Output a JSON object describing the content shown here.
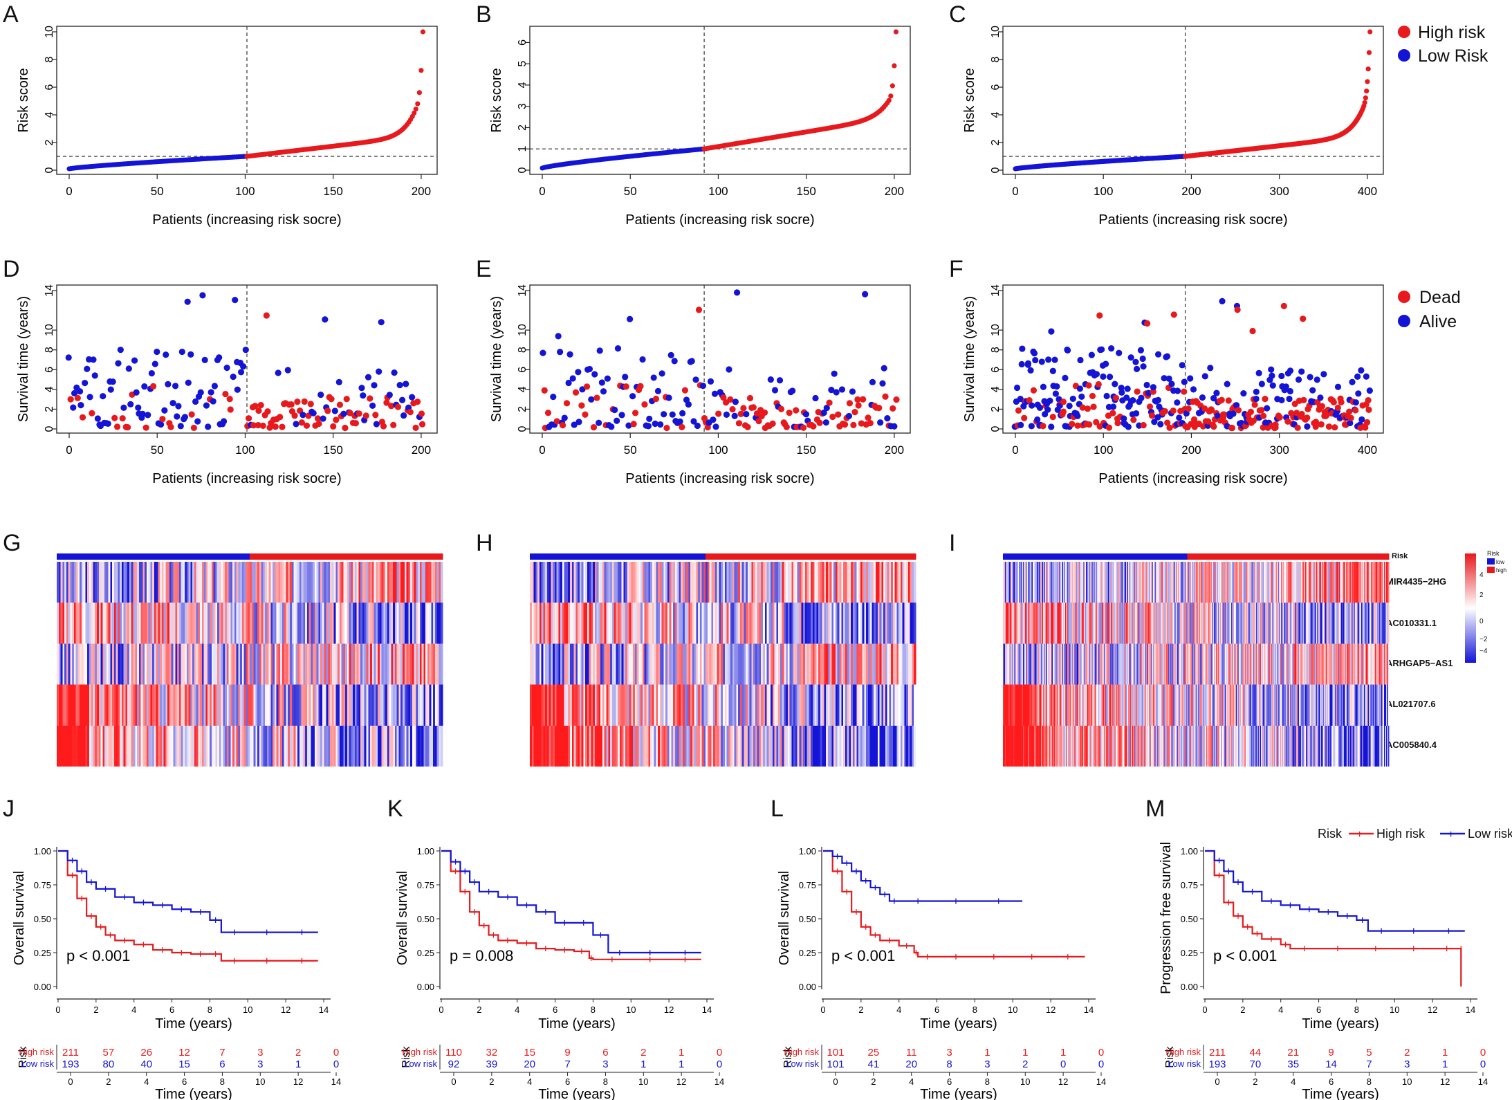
{
  "colors": {
    "high": "#e8191c",
    "low": "#1414d6",
    "dead": "#e8191c",
    "alive": "#1414d6"
  },
  "panel_letters": [
    "A",
    "B",
    "C",
    "D",
    "E",
    "F",
    "G",
    "H",
    "I",
    "J",
    "K",
    "L",
    "M"
  ],
  "risk_legend": {
    "high": "High risk",
    "low": "Low Risk"
  },
  "survival_legend": {
    "dead": "Dead",
    "alive": "Alive"
  },
  "heatmap_legend": {
    "title": "Risk",
    "low": "low",
    "high": "high",
    "ticks": [
      "4",
      "2",
      "0",
      "−2",
      "−4"
    ],
    "genes": [
      "Risk",
      "MIR4435−2HG",
      "AC010331.1",
      "ARHGAP5−AS1",
      "AL021707.6",
      "AC005840.4"
    ]
  },
  "km_legend": {
    "title": "Risk",
    "high": "High risk",
    "low": "Low risk"
  },
  "chart_data": [
    {
      "id": "A",
      "type": "scatter",
      "xlabel": "Patients (increasing risk socre)",
      "ylabel": "Risk score",
      "n": 202,
      "cutoff_index": 101,
      "cutoff_value": 1,
      "ylim": [
        0,
        10
      ],
      "yticks": [
        "0",
        "2",
        "4",
        "6",
        "8",
        "10"
      ],
      "xticks": [
        "0",
        "50",
        "100",
        "150",
        "200"
      ],
      "max_score": 10,
      "series": [
        {
          "name": "Low Risk"
        },
        {
          "name": "High risk"
        }
      ]
    },
    {
      "id": "B",
      "type": "scatter",
      "xlabel": "Patients (increasing risk socre)",
      "ylabel": "Risk score",
      "n": 202,
      "cutoff_index": 92,
      "cutoff_value": 1,
      "ylim": [
        0,
        6.5
      ],
      "yticks": [
        "0",
        "1",
        "2",
        "3",
        "4",
        "5",
        "6"
      ],
      "xticks": [
        "0",
        "50",
        "100",
        "150",
        "200"
      ],
      "max_score": 6.5,
      "series": [
        {
          "name": "Low Risk"
        },
        {
          "name": "High risk"
        }
      ]
    },
    {
      "id": "C",
      "type": "scatter",
      "xlabel": "Patients (increasing risk socre)",
      "ylabel": "Risk score",
      "n": 404,
      "cutoff_index": 193,
      "cutoff_value": 1,
      "ylim": [
        0,
        10
      ],
      "yticks": [
        "0",
        "2",
        "4",
        "6",
        "8",
        "10"
      ],
      "xticks": [
        "0",
        "100",
        "200",
        "300",
        "400"
      ],
      "max_score": 10,
      "series": [
        {
          "name": "Low Risk"
        },
        {
          "name": "High risk"
        }
      ]
    },
    {
      "id": "D",
      "type": "scatter",
      "xlabel": "Patients (increasing risk socre)",
      "ylabel": "Survival time (years)",
      "n": 202,
      "cutoff_index": 101,
      "ylim": [
        0,
        14
      ],
      "yticks": [
        "0",
        "2",
        "4",
        "6",
        "8",
        "10",
        "14"
      ],
      "xticks": [
        "0",
        "50",
        "100",
        "150",
        "200"
      ],
      "series": [
        {
          "name": "Dead"
        },
        {
          "name": "Alive"
        }
      ]
    },
    {
      "id": "E",
      "type": "scatter",
      "xlabel": "Patients (increasing risk socre)",
      "ylabel": "Survival time (years)",
      "n": 202,
      "cutoff_index": 92,
      "ylim": [
        0,
        14
      ],
      "yticks": [
        "0",
        "2",
        "4",
        "6",
        "8",
        "10",
        "14"
      ],
      "xticks": [
        "0",
        "50",
        "100",
        "150",
        "200"
      ],
      "series": [
        {
          "name": "Dead"
        },
        {
          "name": "Alive"
        }
      ]
    },
    {
      "id": "F",
      "type": "scatter",
      "xlabel": "Patients (increasing risk socre)",
      "ylabel": "Survival time (years)",
      "n": 404,
      "cutoff_index": 193,
      "ylim": [
        0,
        14
      ],
      "yticks": [
        "0",
        "2",
        "4",
        "6",
        "8",
        "10",
        "14"
      ],
      "xticks": [
        "0",
        "100",
        "200",
        "300",
        "400"
      ],
      "series": [
        {
          "name": "Dead"
        },
        {
          "name": "Alive"
        }
      ]
    },
    {
      "id": "G",
      "type": "heatmap",
      "columns": 202,
      "low_columns": 101,
      "rows": [
        "MIR4435−2HG",
        "AC010331.1",
        "ARHGAP5−AS1",
        "AL021707.6",
        "AC005840.4"
      ],
      "scale": [
        -4,
        4
      ]
    },
    {
      "id": "H",
      "type": "heatmap",
      "columns": 202,
      "low_columns": 92,
      "rows": [
        "MIR4435−2HG",
        "AC010331.1",
        "ARHGAP5−AS1",
        "AL021707.6",
        "AC005840.4"
      ],
      "scale": [
        -4,
        4
      ]
    },
    {
      "id": "I",
      "type": "heatmap",
      "columns": 404,
      "low_columns": 193,
      "rows": [
        "MIR4435−2HG",
        "AC010331.1",
        "ARHGAP5−AS1",
        "AL021707.6",
        "AC005840.4"
      ],
      "scale": [
        -4,
        4
      ]
    },
    {
      "id": "J",
      "type": "line",
      "ylabel": "Overall survival",
      "xlabel": "Time (years)",
      "pvalue": "p < 0.001",
      "xlim": [
        0,
        14
      ],
      "ylim": [
        0,
        1
      ],
      "xticks": [
        "0",
        "2",
        "4",
        "6",
        "8",
        "10",
        "12",
        "14"
      ],
      "yticks": [
        "0.00",
        "0.25",
        "0.50",
        "0.75",
        "1.00"
      ],
      "series": [
        {
          "name": "High risk",
          "x": [
            0,
            0.5,
            1,
            1.5,
            2,
            2.5,
            3,
            4,
            5,
            6,
            7,
            8,
            8.6,
            10,
            12,
            13.7
          ],
          "y": [
            1,
            0.82,
            0.65,
            0.52,
            0.44,
            0.38,
            0.34,
            0.31,
            0.27,
            0.25,
            0.24,
            0.24,
            0.19,
            0.19,
            0.19,
            0.19
          ]
        },
        {
          "name": "Low risk",
          "x": [
            0,
            0.5,
            1,
            1.5,
            2,
            3,
            4,
            5,
            6,
            7,
            8,
            8.6,
            10,
            12,
            13.7
          ],
          "y": [
            1,
            0.93,
            0.85,
            0.77,
            0.72,
            0.66,
            0.62,
            0.6,
            0.57,
            0.55,
            0.49,
            0.4,
            0.4,
            0.4,
            0.4
          ]
        }
      ],
      "risk_table": {
        "label": "Risk",
        "rows": [
          {
            "name": "High risk",
            "values": [
              "211",
              "57",
              "26",
              "12",
              "7",
              "3",
              "2",
              "0"
            ]
          },
          {
            "name": "Low risk",
            "values": [
              "193",
              "80",
              "40",
              "15",
              "6",
              "3",
              "1",
              "0"
            ]
          }
        ],
        "xticks": [
          "0",
          "2",
          "4",
          "6",
          "8",
          "10",
          "12",
          "14"
        ],
        "xlabel": "Time (years)"
      }
    },
    {
      "id": "K",
      "type": "line",
      "ylabel": "Overall survival",
      "xlabel": "Time (years)",
      "pvalue": "p = 0.008",
      "xlim": [
        0,
        14
      ],
      "ylim": [
        0,
        1
      ],
      "xticks": [
        "0",
        "2",
        "4",
        "6",
        "8",
        "10",
        "12",
        "14"
      ],
      "yticks": [
        "0.00",
        "0.25",
        "0.50",
        "0.75",
        "1.00"
      ],
      "series": [
        {
          "name": "High risk",
          "x": [
            0,
            0.5,
            1,
            1.5,
            2,
            2.5,
            3,
            4,
            5,
            6,
            7,
            7.8,
            8,
            10,
            12,
            13.7
          ],
          "y": [
            1,
            0.85,
            0.7,
            0.55,
            0.45,
            0.38,
            0.34,
            0.32,
            0.28,
            0.27,
            0.26,
            0.21,
            0.2,
            0.2,
            0.2,
            0.2
          ]
        },
        {
          "name": "Low risk",
          "x": [
            0,
            0.5,
            1,
            1.5,
            2,
            3,
            4,
            5,
            6,
            7,
            8,
            8.8,
            10,
            12,
            13.7
          ],
          "y": [
            1,
            0.92,
            0.85,
            0.77,
            0.7,
            0.66,
            0.6,
            0.55,
            0.47,
            0.47,
            0.38,
            0.25,
            0.25,
            0.25,
            0.25
          ]
        }
      ],
      "risk_table": {
        "label": "Risk",
        "rows": [
          {
            "name": "High risk",
            "values": [
              "110",
              "32",
              "15",
              "9",
              "6",
              "2",
              "1",
              "0"
            ]
          },
          {
            "name": "Low risk",
            "values": [
              "92",
              "39",
              "20",
              "7",
              "3",
              "1",
              "1",
              "0"
            ]
          }
        ],
        "xticks": [
          "0",
          "2",
          "4",
          "6",
          "8",
          "10",
          "12",
          "14"
        ],
        "xlabel": "Time (years)"
      }
    },
    {
      "id": "L",
      "type": "line",
      "ylabel": "Overall survival",
      "xlabel": "Time (years)",
      "pvalue": "p < 0.001",
      "xlim": [
        0,
        14
      ],
      "ylim": [
        0,
        1
      ],
      "xticks": [
        "0",
        "2",
        "4",
        "6",
        "8",
        "10",
        "12",
        "14"
      ],
      "yticks": [
        "0.00",
        "0.25",
        "0.50",
        "0.75",
        "1.00"
      ],
      "series": [
        {
          "name": "High risk",
          "x": [
            0,
            0.5,
            1,
            1.5,
            2,
            2.5,
            3,
            4,
            4.8,
            5,
            6,
            8,
            10,
            12,
            13.8
          ],
          "y": [
            1,
            0.85,
            0.7,
            0.55,
            0.44,
            0.38,
            0.34,
            0.3,
            0.25,
            0.22,
            0.22,
            0.22,
            0.22,
            0.22,
            0.22
          ]
        },
        {
          "name": "Low risk",
          "x": [
            0,
            0.5,
            1,
            1.5,
            2,
            2.5,
            3,
            3.5,
            4,
            6,
            8,
            10.5
          ],
          "y": [
            1,
            0.96,
            0.91,
            0.85,
            0.78,
            0.73,
            0.68,
            0.63,
            0.63,
            0.63,
            0.63,
            0.63
          ]
        }
      ],
      "risk_table": {
        "label": "Risk",
        "rows": [
          {
            "name": "High risk",
            "values": [
              "101",
              "25",
              "11",
              "3",
              "1",
              "1",
              "1",
              "0"
            ]
          },
          {
            "name": "Low risk",
            "values": [
              "101",
              "41",
              "20",
              "8",
              "3",
              "2",
              "0",
              "0"
            ]
          }
        ],
        "xticks": [
          "0",
          "2",
          "4",
          "6",
          "8",
          "10",
          "12",
          "14"
        ],
        "xlabel": "Time (years)"
      }
    },
    {
      "id": "M",
      "type": "line",
      "ylabel": "Progression free survival",
      "xlabel": "Time (years)",
      "pvalue": "p < 0.001",
      "xlim": [
        0,
        14
      ],
      "ylim": [
        0,
        1
      ],
      "xticks": [
        "0",
        "2",
        "4",
        "6",
        "8",
        "10",
        "12",
        "14"
      ],
      "yticks": [
        "0.00",
        "0.25",
        "0.50",
        "0.75",
        "1.00"
      ],
      "series": [
        {
          "name": "High risk",
          "x": [
            0,
            0.5,
            1,
            1.5,
            2,
            2.5,
            3,
            4,
            4.5,
            6,
            8,
            10,
            12,
            13.5,
            13.5
          ],
          "y": [
            1,
            0.82,
            0.62,
            0.52,
            0.44,
            0.39,
            0.35,
            0.31,
            0.28,
            0.28,
            0.28,
            0.28,
            0.28,
            0.28,
            0
          ]
        },
        {
          "name": "Low risk",
          "x": [
            0,
            0.5,
            1,
            1.5,
            2,
            3,
            4,
            5,
            6,
            7,
            8,
            8.6,
            10,
            12,
            13.7
          ],
          "y": [
            1,
            0.93,
            0.85,
            0.77,
            0.7,
            0.63,
            0.6,
            0.57,
            0.55,
            0.52,
            0.49,
            0.41,
            0.41,
            0.41,
            0.41
          ]
        }
      ],
      "risk_table": {
        "label": "Risk",
        "rows": [
          {
            "name": "High risk",
            "values": [
              "211",
              "44",
              "21",
              "9",
              "5",
              "2",
              "1",
              "0"
            ]
          },
          {
            "name": "Low risk",
            "values": [
              "193",
              "70",
              "35",
              "14",
              "7",
              "3",
              "1",
              "0"
            ]
          }
        ],
        "xticks": [
          "0",
          "2",
          "4",
          "6",
          "8",
          "10",
          "12",
          "14"
        ],
        "xlabel": "Time (years)"
      }
    }
  ]
}
